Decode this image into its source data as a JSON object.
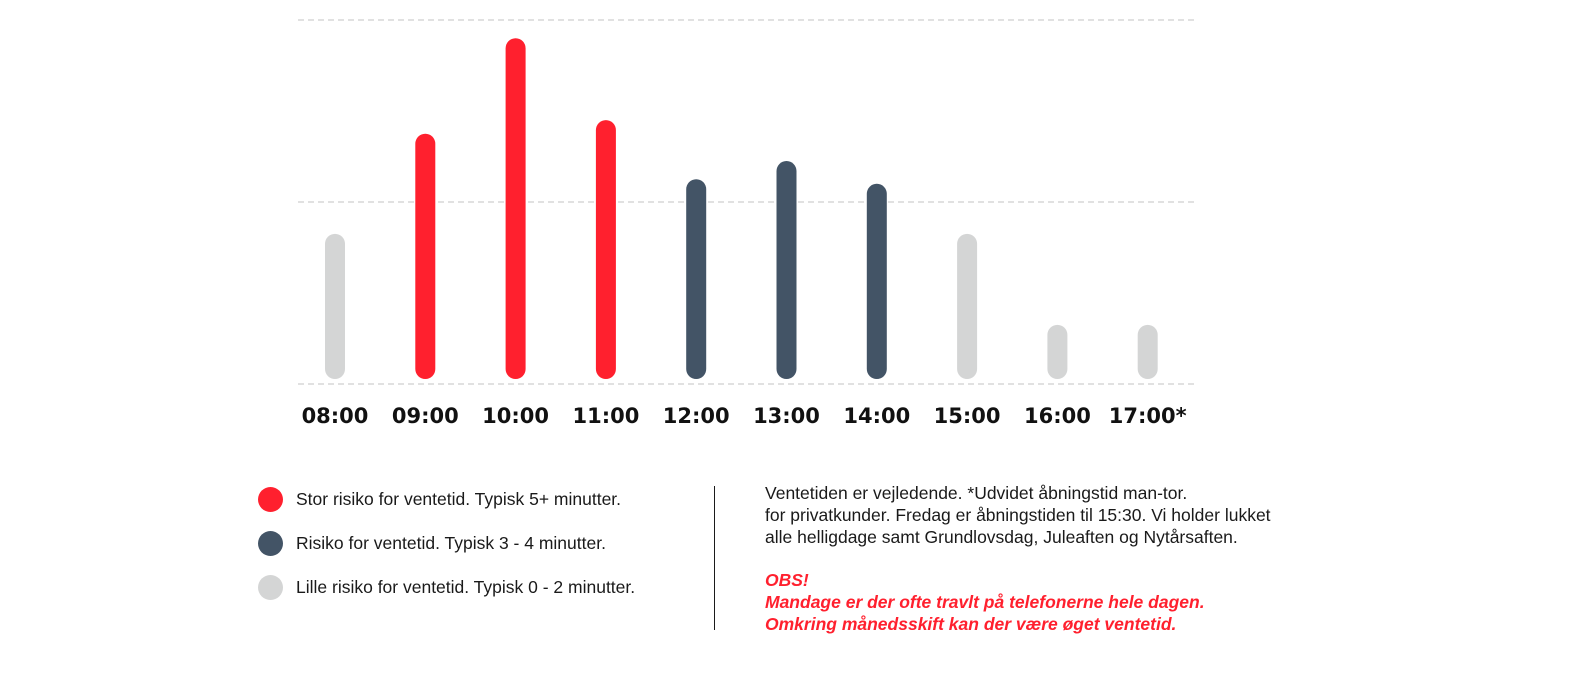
{
  "chart_data": {
    "type": "bar",
    "categories": [
      "08:00",
      "09:00",
      "10:00",
      "11:00",
      "12:00",
      "13:00",
      "14:00",
      "15:00",
      "16:00",
      "17:00*"
    ],
    "values": [
      3.3,
      5.5,
      7.6,
      5.8,
      4.5,
      4.9,
      4.4,
      3.3,
      1.3,
      1.3
    ],
    "risk": [
      "low",
      "high",
      "high",
      "high",
      "medium",
      "medium",
      "medium",
      "low",
      "low",
      "low"
    ],
    "ylim": [
      0,
      8
    ],
    "grid": true,
    "gridlines": [
      0,
      4,
      8
    ],
    "title": "",
    "xlabel": "",
    "ylabel": ""
  },
  "colors": {
    "high": "#ff202e",
    "medium": "#435466",
    "low": "#d4d5d5",
    "grid": "#cfcfcf",
    "obs_text": "#ff202e"
  },
  "legend": {
    "items": [
      {
        "color_key": "high",
        "label": "Stor risiko for ventetid. Typisk 5+ minutter."
      },
      {
        "color_key": "medium",
        "label": "Risiko for ventetid. Typisk 3 - 4 minutter."
      },
      {
        "color_key": "low",
        "label": "Lille risiko for ventetid. Typisk 0 - 2 minutter."
      }
    ]
  },
  "notes": {
    "lines": [
      "Ventetiden er vejledende. *Udvidet åbningstid man-tor.",
      "for privatkunder. Fredag er åbningstiden til 15:30. Vi holder lukket",
      "alle helligdage samt Grundlovsdag, Juleaften og Nytårsaften."
    ],
    "obs_lines": [
      "OBS!",
      "Mandage er der ofte travlt på telefonerne hele dagen.",
      "Omkring månedsskift kan der være øget ventetid."
    ]
  }
}
